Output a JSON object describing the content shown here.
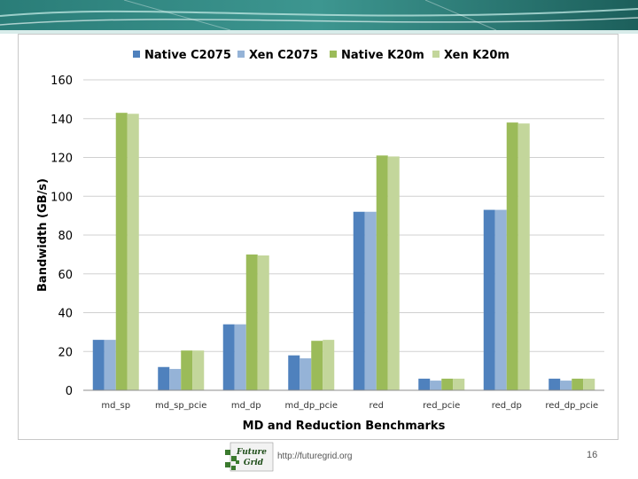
{
  "slide": {
    "footer_url": "http://futuregrid.org",
    "page_number": "16",
    "logo": {
      "line1": "Future",
      "line2": "Grid"
    },
    "colors": {
      "top_band": "#1f6f6b",
      "top_band_light": "#9fd4cf"
    }
  },
  "chart_data": {
    "type": "bar",
    "title": "",
    "xlabel": "MD and Reduction Benchmarks",
    "ylabel": "Bandwidth (GB/s)",
    "ylim": [
      0,
      160
    ],
    "yticks": [
      0,
      20,
      40,
      60,
      80,
      100,
      120,
      140,
      160
    ],
    "grid": true,
    "legend_position": "top",
    "categories": [
      "md_sp",
      "md_sp_pcie",
      "md_dp",
      "md_dp_pcie",
      "red",
      "red_pcie",
      "red_dp",
      "red_dp_pcie"
    ],
    "series": [
      {
        "name": "Native C2075",
        "color": "#4f81bd",
        "values": [
          26,
          12,
          34,
          18,
          92,
          6,
          93,
          6
        ]
      },
      {
        "name": "Xen C2075",
        "color": "#95b3d7",
        "values": [
          26,
          11,
          34,
          16.5,
          92,
          5,
          93,
          5
        ]
      },
      {
        "name": "Native K20m",
        "color": "#9bbb59",
        "values": [
          143,
          20.5,
          70,
          25.5,
          121,
          6,
          138,
          6
        ]
      },
      {
        "name": "Xen K20m",
        "color": "#c3d69b",
        "values": [
          142.5,
          20.5,
          69.5,
          26,
          120.5,
          6,
          137.5,
          6
        ]
      }
    ]
  }
}
